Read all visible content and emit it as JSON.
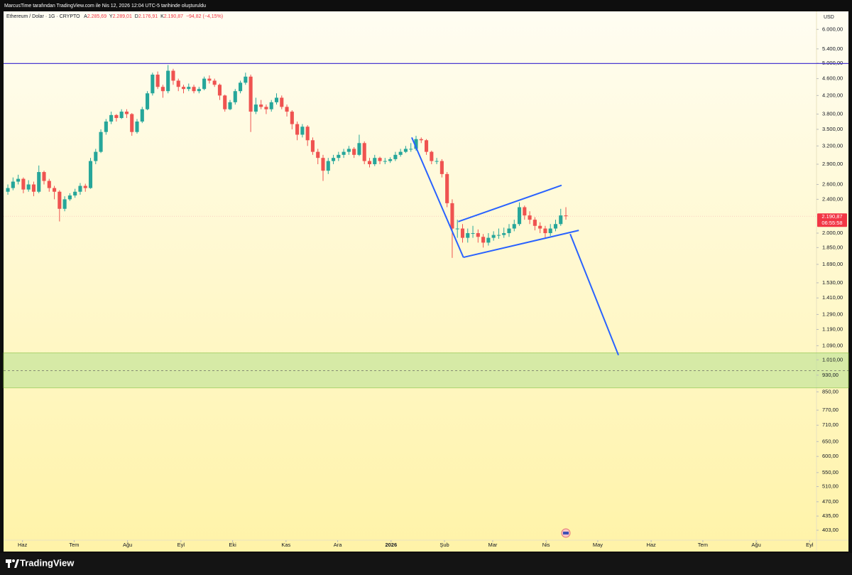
{
  "header": {
    "text": "MarcusTime tarafından TradingView.com ile Nis 12, 2026 12:04 UTC-5 tarihinde oluşturuldu"
  },
  "footer": {
    "brand": "TradingView"
  },
  "chart_data": {
    "type": "candlestick",
    "legend": {
      "symbol": "Ethereum / Dolar · 1G · CRYPTO",
      "open_key": "A",
      "open": "2.285,69",
      "high_key": "Y",
      "high": "2.289,01",
      "low_key": "D",
      "low": "2.176,91",
      "close_key": "K",
      "close": "2.190,87",
      "change": "−94,82 (−4,15%)"
    },
    "currency": "USD",
    "last_price": {
      "value": 2190.87,
      "label": "2.190,87"
    },
    "countdown": "06:55:58",
    "up_color": "#26a69a",
    "down_color": "#ef5350",
    "log_scale": true,
    "ylim": [
      382,
      6510
    ],
    "yticks": [
      {
        "value": 6000,
        "label": "6.000,00"
      },
      {
        "value": 5400,
        "label": "5.400,00"
      },
      {
        "value": 5000,
        "label": "5.000,00"
      },
      {
        "value": 4600,
        "label": "4.600,00"
      },
      {
        "value": 4200,
        "label": "4.200,00"
      },
      {
        "value": 3800,
        "label": "3.800,00"
      },
      {
        "value": 3500,
        "label": "3.500,00"
      },
      {
        "value": 3200,
        "label": "3.200,00"
      },
      {
        "value": 2900,
        "label": "2.900,00"
      },
      {
        "value": 2600,
        "label": "2.600,00"
      },
      {
        "value": 2400,
        "label": "2.400,00"
      },
      {
        "value": 2000,
        "label": "2.000,00"
      },
      {
        "value": 1850,
        "label": "1.850,00"
      },
      {
        "value": 1690,
        "label": "1.690,00"
      },
      {
        "value": 1530,
        "label": "1.530,00"
      },
      {
        "value": 1410,
        "label": "1.410,00"
      },
      {
        "value": 1290,
        "label": "1.290,00"
      },
      {
        "value": 1190,
        "label": "1.190,00"
      },
      {
        "value": 1090,
        "label": "1.090,00"
      },
      {
        "value": 1010,
        "label": "1.010,00"
      },
      {
        "value": 930,
        "label": "930,00"
      },
      {
        "value": 850,
        "label": "850,00"
      },
      {
        "value": 770,
        "label": "770,00"
      },
      {
        "value": 710,
        "label": "710,00"
      },
      {
        "value": 650,
        "label": "650,00"
      },
      {
        "value": 600,
        "label": "600,00"
      },
      {
        "value": 550,
        "label": "550,00"
      },
      {
        "value": 510,
        "label": "510,00"
      },
      {
        "value": 470,
        "label": "470,00"
      },
      {
        "value": 435,
        "label": "435,00"
      },
      {
        "value": 403,
        "label": "403,00"
      }
    ],
    "xlim": [
      "2025-05-21",
      "2026-09-05"
    ],
    "xticks": [
      {
        "value": "2025-06-01",
        "label": "Haz"
      },
      {
        "value": "2025-07-01",
        "label": "Tem"
      },
      {
        "value": "2025-08-01",
        "label": "Ağu"
      },
      {
        "value": "2025-09-01",
        "label": "Eyl"
      },
      {
        "value": "2025-10-01",
        "label": "Eki"
      },
      {
        "value": "2025-11-01",
        "label": "Kas"
      },
      {
        "value": "2025-12-01",
        "label": "Ara"
      },
      {
        "value": "2026-01-01",
        "label": "2026"
      },
      {
        "value": "2026-02-01",
        "label": "Şub"
      },
      {
        "value": "2026-03-01",
        "label": "Mar"
      },
      {
        "value": "2026-04-01",
        "label": "Nis"
      },
      {
        "value": "2026-05-01",
        "label": "May"
      },
      {
        "value": "2026-06-01",
        "label": "Haz"
      },
      {
        "value": "2026-07-01",
        "label": "Tem"
      },
      {
        "value": "2026-08-01",
        "label": "Ağu"
      },
      {
        "value": "2026-09-01",
        "label": "Eyl"
      }
    ],
    "candle_days": 3,
    "dates": [
      "2025-05-22",
      "2025-05-25",
      "2025-05-28",
      "2025-05-31",
      "2025-06-03",
      "2025-06-06",
      "2025-06-09",
      "2025-06-12",
      "2025-06-15",
      "2025-06-18",
      "2025-06-21",
      "2025-06-24",
      "2025-06-27",
      "2025-06-30",
      "2025-07-03",
      "2025-07-06",
      "2025-07-09",
      "2025-07-12",
      "2025-07-15",
      "2025-07-18",
      "2025-07-21",
      "2025-07-24",
      "2025-07-27",
      "2025-07-30",
      "2025-08-02",
      "2025-08-05",
      "2025-08-08",
      "2025-08-11",
      "2025-08-14",
      "2025-08-17",
      "2025-08-20",
      "2025-08-23",
      "2025-08-26",
      "2025-08-29",
      "2025-09-01",
      "2025-09-04",
      "2025-09-07",
      "2025-09-10",
      "2025-09-13",
      "2025-09-16",
      "2025-09-19",
      "2025-09-22",
      "2025-09-25",
      "2025-09-28",
      "2025-10-01",
      "2025-10-04",
      "2025-10-07",
      "2025-10-10",
      "2025-10-13",
      "2025-10-16",
      "2025-10-19",
      "2025-10-22",
      "2025-10-25",
      "2025-10-28",
      "2025-10-31",
      "2025-11-03",
      "2025-11-06",
      "2025-11-09",
      "2025-11-12",
      "2025-11-15",
      "2025-11-18",
      "2025-11-21",
      "2025-11-24",
      "2025-11-27",
      "2025-11-30",
      "2025-12-03",
      "2025-12-06",
      "2025-12-09",
      "2025-12-12",
      "2025-12-15",
      "2025-12-18",
      "2025-12-21",
      "2025-12-24",
      "2025-12-27",
      "2025-12-30",
      "2026-01-02",
      "2026-01-05",
      "2026-01-08",
      "2026-01-11",
      "2026-01-14",
      "2026-01-17",
      "2026-01-20",
      "2026-01-23",
      "2026-01-26",
      "2026-01-29",
      "2026-02-01",
      "2026-02-04",
      "2026-02-07",
      "2026-02-10",
      "2026-02-13",
      "2026-02-16",
      "2026-02-19",
      "2026-02-22",
      "2026-02-25",
      "2026-02-28",
      "2026-03-03",
      "2026-03-06",
      "2026-03-09",
      "2026-03-12",
      "2026-03-15",
      "2026-03-18",
      "2026-03-21",
      "2026-03-24",
      "2026-03-27",
      "2026-03-30",
      "2026-04-02",
      "2026-04-05",
      "2026-04-08",
      "2026-04-11"
    ],
    "open": [
      2500,
      2550,
      2640,
      2680,
      2530,
      2600,
      2500,
      2780,
      2650,
      2550,
      2500,
      2280,
      2400,
      2450,
      2500,
      2580,
      2550,
      2950,
      3100,
      3450,
      3650,
      3780,
      3720,
      3850,
      3800,
      3450,
      3650,
      3900,
      4250,
      4700,
      4400,
      4300,
      4800,
      4550,
      4400,
      4350,
      4400,
      4300,
      4350,
      4600,
      4550,
      4450,
      4200,
      3900,
      4050,
      4300,
      4500,
      4650,
      3850,
      4000,
      3950,
      3900,
      4050,
      4150,
      3950,
      3850,
      3600,
      3400,
      3550,
      3300,
      3100,
      3000,
      2800,
      2950,
      3000,
      3050,
      3100,
      3150,
      3050,
      3250,
      2950,
      2900,
      3000,
      2950,
      2950,
      2980,
      3050,
      3100,
      3150,
      3150,
      3320,
      3300,
      3100,
      2950,
      2950,
      2750,
      2350,
      2050,
      2050,
      1950,
      2000,
      2000,
      1960,
      1900,
      1950,
      1980,
      1980,
      2000,
      2050,
      2100,
      2300,
      2200,
      2150,
      2080,
      2050,
      2000,
      2050,
      2100,
      2200
    ],
    "high": [
      2600,
      2700,
      2740,
      2700,
      2660,
      2640,
      2880,
      2800,
      2680,
      2580,
      2520,
      2440,
      2480,
      2540,
      2620,
      2610,
      3000,
      3150,
      3500,
      3700,
      3850,
      3800,
      3900,
      3900,
      3820,
      3700,
      3950,
      4300,
      4750,
      4780,
      4450,
      4950,
      4850,
      4600,
      4450,
      4480,
      4450,
      4400,
      4650,
      4680,
      4600,
      4480,
      4220,
      4100,
      4350,
      4550,
      4750,
      4700,
      4150,
      4100,
      4000,
      4100,
      4250,
      4200,
      4000,
      3880,
      3650,
      3600,
      3580,
      3350,
      3150,
      3050,
      3000,
      3050,
      3100,
      3150,
      3200,
      3180,
      3400,
      3280,
      3000,
      3050,
      3020,
      3000,
      3010,
      3100,
      3150,
      3200,
      3250,
      3380,
      3350,
      3320,
      3120,
      3000,
      2980,
      2780,
      2400,
      2150,
      2100,
      2050,
      2080,
      2040,
      1990,
      2000,
      2020,
      2050,
      2060,
      2100,
      2150,
      2360,
      2320,
      2250,
      2180,
      2120,
      2080,
      2100,
      2150,
      2280,
      2300
    ],
    "low": [
      2460,
      2520,
      2600,
      2480,
      2500,
      2440,
      2480,
      2600,
      2500,
      2400,
      2130,
      2250,
      2380,
      2420,
      2460,
      2500,
      2540,
      2900,
      3080,
      3400,
      3600,
      3650,
      3700,
      3720,
      3380,
      3420,
      3620,
      3880,
      4200,
      4350,
      4150,
      4250,
      4450,
      4300,
      4250,
      4300,
      4250,
      4250,
      4320,
      4480,
      4400,
      4100,
      3850,
      3880,
      4000,
      4250,
      4450,
      3450,
      3800,
      3900,
      3800,
      3850,
      4000,
      3900,
      3750,
      3500,
      3300,
      3350,
      3200,
      3050,
      2900,
      2650,
      2750,
      2900,
      2950,
      3000,
      3050,
      3000,
      3030,
      2900,
      2850,
      2870,
      2900,
      2900,
      2920,
      2950,
      3020,
      3080,
      3100,
      3120,
      3250,
      3050,
      2900,
      2900,
      2700,
      2300,
      1750,
      1950,
      1900,
      1900,
      1950,
      1900,
      1850,
      1870,
      1920,
      1940,
      1950,
      1960,
      2020,
      2080,
      2150,
      2100,
      2030,
      2000,
      1950,
      1970,
      2020,
      2080,
      2150
    ],
    "close": [
      2550,
      2640,
      2680,
      2530,
      2600,
      2500,
      2780,
      2650,
      2550,
      2500,
      2280,
      2400,
      2450,
      2500,
      2580,
      2550,
      2950,
      3100,
      3450,
      3650,
      3780,
      3720,
      3850,
      3800,
      3450,
      3650,
      3900,
      4250,
      4700,
      4400,
      4300,
      4800,
      4550,
      4400,
      4350,
      4400,
      4300,
      4350,
      4600,
      4550,
      4450,
      4200,
      3900,
      4050,
      4300,
      4500,
      4650,
      3850,
      4000,
      3950,
      3900,
      4050,
      4150,
      3950,
      3850,
      3600,
      3400,
      3550,
      3300,
      3100,
      3000,
      2800,
      2950,
      3000,
      3050,
      3100,
      3150,
      3050,
      3250,
      2950,
      2900,
      3000,
      2950,
      2950,
      2980,
      3050,
      3100,
      3150,
      3150,
      3320,
      3300,
      3100,
      2950,
      2950,
      2750,
      2350,
      2050,
      2050,
      1950,
      2000,
      2000,
      1960,
      1900,
      1950,
      1980,
      1980,
      2000,
      2050,
      2100,
      2300,
      2200,
      2150,
      2080,
      2050,
      2000,
      2050,
      2100,
      2200,
      2190.87
    ],
    "hlines": [
      {
        "value": 4990,
        "color": "#4b3bd1"
      }
    ],
    "segments": [
      {
        "x": [
          "2026-01-13",
          "2026-02-12"
        ],
        "y": [
          3350,
          1755
        ],
        "color": "#2962ff"
      },
      {
        "x": [
          "2026-02-09",
          "2026-04-10"
        ],
        "y": [
          2128,
          2588
        ],
        "color": "#2962ff"
      },
      {
        "x": [
          "2026-02-12",
          "2026-04-20"
        ],
        "y": [
          1755,
          2030
        ],
        "color": "#2962ff"
      },
      {
        "x": [
          "2026-04-15",
          "2026-05-13"
        ],
        "y": [
          1990,
          1036
        ],
        "color": "#2962ff"
      }
    ],
    "zones": [
      {
        "low": 868,
        "high": 1049,
        "mid": 952,
        "color": "#b5e08f"
      }
    ]
  }
}
